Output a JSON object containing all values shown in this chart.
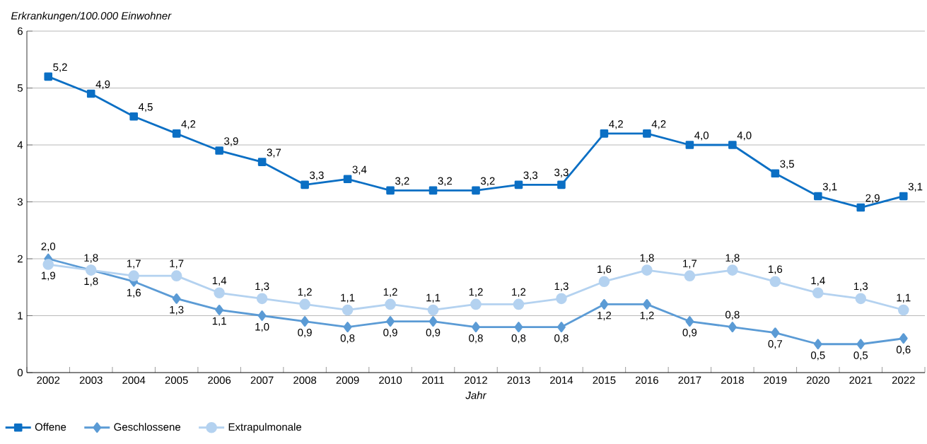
{
  "chart_data": {
    "type": "line",
    "ylabel": "Erkrankungen/100.000 Einwohner",
    "xlabel": "Jahr",
    "categories": [
      "2002",
      "2003",
      "2004",
      "2005",
      "2006",
      "2007",
      "2008",
      "2009",
      "2010",
      "2011",
      "2012",
      "2013",
      "2014",
      "2015",
      "2016",
      "2017",
      "2018",
      "2019",
      "2020",
      "2021",
      "2022"
    ],
    "ylim": [
      0,
      6
    ],
    "yticks": [
      0,
      1,
      2,
      3,
      4,
      5,
      6
    ],
    "grid": "y",
    "legend": "bottom left",
    "series": [
      {
        "name": "Offene",
        "color": "#0b6fc4",
        "marker": "square",
        "values": [
          5.2,
          4.9,
          4.5,
          4.2,
          3.9,
          3.7,
          3.3,
          3.4,
          3.2,
          3.2,
          3.2,
          3.3,
          3.3,
          4.2,
          4.2,
          4.0,
          4.0,
          3.5,
          3.1,
          2.9,
          3.1
        ],
        "value_labels": [
          "5,2",
          "4,9",
          "4,5",
          "4,2",
          "3,9",
          "3,7",
          "3,3",
          "3,4",
          "3,2",
          "3,2",
          "3,2",
          "3,3",
          "3,3",
          "4,2",
          "4,2",
          "4,0",
          "4,0",
          "3,5",
          "3,1",
          "2,9",
          "3,1"
        ]
      },
      {
        "name": "Geschlossene",
        "color": "#5b9bd5",
        "marker": "diamond",
        "values": [
          2.0,
          1.8,
          1.6,
          1.3,
          1.1,
          1.0,
          0.9,
          0.8,
          0.9,
          0.9,
          0.8,
          0.8,
          0.8,
          1.2,
          1.2,
          0.9,
          0.8,
          0.7,
          0.5,
          0.5,
          0.6
        ],
        "value_labels": [
          "2,0",
          "1,8",
          "1,6",
          "1,3",
          "1,1",
          "1,0",
          "0,9",
          "0,8",
          "0,9",
          "0,9",
          "0,8",
          "0,8",
          "0,8",
          "1,2",
          "1,2",
          "0,9",
          "0,8",
          "0,7",
          "0,5",
          "0,5",
          "0,6"
        ]
      },
      {
        "name": "Extrapulmonale",
        "color": "#b4d2f0",
        "marker": "circle",
        "values": [
          1.9,
          1.8,
          1.7,
          1.7,
          1.4,
          1.3,
          1.2,
          1.1,
          1.2,
          1.1,
          1.2,
          1.2,
          1.3,
          1.6,
          1.8,
          1.7,
          1.8,
          1.6,
          1.4,
          1.3,
          1.1
        ],
        "value_labels": [
          "1,9",
          "1,8",
          "1,7",
          "1,7",
          "1,4",
          "1,3",
          "1,2",
          "1,1",
          "1,2",
          "1,1",
          "1,2",
          "1,2",
          "1,3",
          "1,6",
          "1,8",
          "1,7",
          "1,8",
          "1,6",
          "1,4",
          "1,3",
          "1,1"
        ]
      }
    ]
  }
}
